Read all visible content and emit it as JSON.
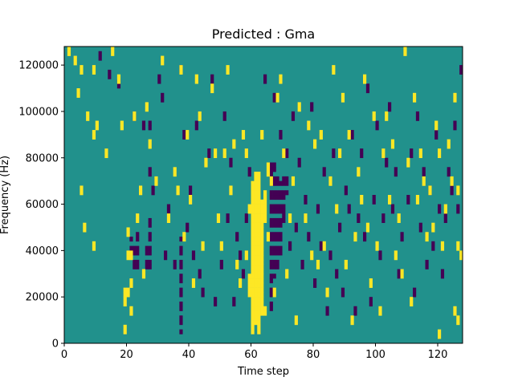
{
  "chart_data": {
    "type": "heatmap",
    "title": "Predicted : Gma",
    "xlabel": "Time step",
    "ylabel": "Frequency (Hz)",
    "xlim": [
      0,
      128
    ],
    "ylim": [
      0,
      128000
    ],
    "x_ticks": [
      0,
      20,
      40,
      60,
      80,
      100,
      120
    ],
    "y_ticks": [
      0,
      20000,
      40000,
      60000,
      80000,
      100000,
      120000
    ],
    "x_tick_labels": [
      "0",
      "20",
      "40",
      "60",
      "80",
      "100",
      "120"
    ],
    "y_tick_labels": [
      "0",
      "20000",
      "40000",
      "60000",
      "80000",
      "100000",
      "120000"
    ],
    "n_freq_bins": 64,
    "freq_bin_hz": 2000,
    "grid": false,
    "legend": "none",
    "colors": {
      "background": "#21918c",
      "high": "#fde725",
      "low": "#440154"
    },
    "yellow_columns": [
      {
        "t": 60,
        "f": [
          2,
          34
        ]
      },
      {
        "t": 61,
        "f": [
          4,
          36
        ]
      },
      {
        "t": 62,
        "f": [
          2,
          36
        ]
      },
      {
        "t": 63,
        "f": [
          6,
          30
        ]
      },
      {
        "t": 64,
        "f": [
          26,
          32
        ]
      },
      {
        "t": 59,
        "f": [
          10,
          14
        ]
      },
      {
        "t": 65,
        "f": [
          36,
          38
        ]
      }
    ],
    "yellow_cells": [
      [
        1,
        62
      ],
      [
        3,
        60
      ],
      [
        4,
        53
      ],
      [
        5,
        58
      ],
      [
        9,
        58
      ],
      [
        9,
        44
      ],
      [
        13,
        40
      ],
      [
        15,
        62
      ],
      [
        17,
        56
      ],
      [
        18,
        46
      ],
      [
        19,
        2
      ],
      [
        7,
        48
      ],
      [
        6,
        24
      ],
      [
        9,
        20
      ],
      [
        10,
        46
      ],
      [
        5,
        32
      ],
      [
        20,
        18
      ],
      [
        20,
        23
      ],
      [
        21,
        18
      ],
      [
        21,
        12
      ],
      [
        21,
        6
      ],
      [
        22,
        48
      ],
      [
        19,
        8
      ],
      [
        19,
        10
      ],
      [
        20,
        10
      ],
      [
        23,
        26
      ],
      [
        24,
        32
      ],
      [
        25,
        14
      ],
      [
        26,
        50
      ],
      [
        27,
        42
      ],
      [
        29,
        34
      ],
      [
        31,
        60
      ],
      [
        33,
        26
      ],
      [
        35,
        36
      ],
      [
        36,
        32
      ],
      [
        37,
        58
      ],
      [
        38,
        22
      ],
      [
        39,
        44
      ],
      [
        40,
        30
      ],
      [
        41,
        12
      ],
      [
        42,
        56
      ],
      [
        43,
        48
      ],
      [
        44,
        20
      ],
      [
        45,
        38
      ],
      [
        47,
        54
      ],
      [
        48,
        40
      ],
      [
        49,
        26
      ],
      [
        50,
        20
      ],
      [
        51,
        40
      ],
      [
        52,
        58
      ],
      [
        53,
        32
      ],
      [
        54,
        42
      ],
      [
        55,
        16
      ],
      [
        56,
        12
      ],
      [
        57,
        44
      ],
      [
        58,
        18
      ],
      [
        58,
        40
      ],
      [
        59,
        28
      ],
      [
        63,
        44
      ],
      [
        64,
        6
      ],
      [
        65,
        22
      ],
      [
        66,
        34
      ],
      [
        67,
        10
      ],
      [
        68,
        52
      ],
      [
        69,
        56
      ],
      [
        70,
        40
      ],
      [
        71,
        14
      ],
      [
        72,
        26
      ],
      [
        73,
        34
      ],
      [
        74,
        4
      ],
      [
        75,
        50
      ],
      [
        77,
        26
      ],
      [
        78,
        46
      ],
      [
        79,
        18
      ],
      [
        80,
        42
      ],
      [
        81,
        16
      ],
      [
        82,
        44
      ],
      [
        83,
        20
      ],
      [
        84,
        10
      ],
      [
        85,
        34
      ],
      [
        86,
        58
      ],
      [
        87,
        28
      ],
      [
        88,
        40
      ],
      [
        89,
        52
      ],
      [
        90,
        16
      ],
      [
        91,
        44
      ],
      [
        92,
        4
      ],
      [
        93,
        22
      ],
      [
        94,
        36
      ],
      [
        95,
        30
      ],
      [
        96,
        56
      ],
      [
        97,
        24
      ],
      [
        98,
        12
      ],
      [
        99,
        48
      ],
      [
        100,
        20
      ],
      [
        101,
        6
      ],
      [
        102,
        40
      ],
      [
        103,
        48
      ],
      [
        104,
        30
      ],
      [
        105,
        42
      ],
      [
        106,
        18
      ],
      [
        107,
        26
      ],
      [
        108,
        14
      ],
      [
        109,
        62
      ],
      [
        110,
        38
      ],
      [
        111,
        8
      ],
      [
        112,
        52
      ],
      [
        113,
        30
      ],
      [
        114,
        40
      ],
      [
        115,
        34
      ],
      [
        116,
        22
      ],
      [
        117,
        32
      ],
      [
        118,
        24
      ],
      [
        119,
        46
      ],
      [
        120,
        40
      ],
      [
        120,
        1
      ],
      [
        121,
        20
      ],
      [
        122,
        28
      ],
      [
        123,
        42
      ],
      [
        124,
        34
      ],
      [
        125,
        52
      ],
      [
        126,
        20
      ],
      [
        126,
        32
      ],
      [
        127,
        18
      ],
      [
        125,
        6
      ],
      [
        126,
        4
      ]
    ],
    "purple_cells": [
      [
        4,
        64
      ],
      [
        11,
        61
      ],
      [
        14,
        57
      ],
      [
        17,
        55
      ],
      [
        22,
        48
      ],
      [
        25,
        46
      ],
      [
        27,
        36
      ],
      [
        27,
        46
      ],
      [
        28,
        32
      ],
      [
        30,
        56
      ],
      [
        31,
        52
      ],
      [
        32,
        18
      ],
      [
        33,
        28
      ],
      [
        35,
        16
      ],
      [
        37,
        58
      ],
      [
        38,
        44
      ],
      [
        39,
        24
      ],
      [
        40,
        32
      ],
      [
        41,
        18
      ],
      [
        42,
        46
      ],
      [
        43,
        14
      ],
      [
        44,
        10
      ],
      [
        46,
        40
      ],
      [
        47,
        56
      ],
      [
        48,
        8
      ],
      [
        50,
        16
      ],
      [
        51,
        48
      ],
      [
        52,
        26
      ],
      [
        53,
        38
      ],
      [
        54,
        8
      ],
      [
        55,
        22
      ],
      [
        56,
        18
      ],
      [
        57,
        14
      ],
      [
        58,
        26
      ],
      [
        59,
        36
      ],
      [
        64,
        56
      ],
      [
        66,
        36
      ],
      [
        67,
        52
      ],
      [
        68,
        34
      ],
      [
        69,
        44
      ],
      [
        70,
        26
      ],
      [
        71,
        40
      ],
      [
        72,
        20
      ],
      [
        73,
        48
      ],
      [
        74,
        24
      ],
      [
        75,
        38
      ],
      [
        76,
        16
      ],
      [
        77,
        30
      ],
      [
        78,
        22
      ],
      [
        79,
        50
      ],
      [
        80,
        12
      ],
      [
        81,
        28
      ],
      [
        82,
        20
      ],
      [
        83,
        36
      ],
      [
        84,
        6
      ],
      [
        85,
        18
      ],
      [
        86,
        40
      ],
      [
        87,
        14
      ],
      [
        88,
        24
      ],
      [
        89,
        10
      ],
      [
        90,
        32
      ],
      [
        91,
        28
      ],
      [
        92,
        44
      ],
      [
        93,
        6
      ],
      [
        94,
        26
      ],
      [
        95,
        40
      ],
      [
        96,
        22
      ],
      [
        97,
        54
      ],
      [
        98,
        8
      ],
      [
        99,
        30
      ],
      [
        100,
        46
      ],
      [
        101,
        18
      ],
      [
        102,
        26
      ],
      [
        103,
        38
      ],
      [
        104,
        50
      ],
      [
        105,
        28
      ],
      [
        106,
        36
      ],
      [
        107,
        14
      ],
      [
        108,
        22
      ],
      [
        109,
        64
      ],
      [
        110,
        30
      ],
      [
        111,
        40
      ],
      [
        112,
        10
      ],
      [
        113,
        48
      ],
      [
        114,
        24
      ],
      [
        115,
        36
      ],
      [
        116,
        16
      ],
      [
        117,
        32
      ],
      [
        118,
        20
      ],
      [
        119,
        44
      ],
      [
        120,
        28
      ],
      [
        121,
        14
      ],
      [
        122,
        26
      ],
      [
        123,
        36
      ],
      [
        124,
        32
      ],
      [
        125,
        46
      ],
      [
        126,
        28
      ],
      [
        127,
        58
      ]
    ],
    "purple_clusters": [
      {
        "t": 66,
        "f": [
          6,
          38
        ]
      },
      {
        "t": 67,
        "f": [
          14,
          38
        ]
      },
      {
        "t": 68,
        "f": [
          16,
          32
        ]
      },
      {
        "t": 69,
        "f": [
          18,
          34
        ]
      },
      {
        "t": 70,
        "f": [
          28,
          36
        ]
      },
      {
        "t": 71,
        "f": [
          32,
          36
        ]
      },
      {
        "t": 37,
        "f": [
          2,
          22
        ]
      },
      {
        "t": 26,
        "f": [
          16,
          20
        ]
      },
      {
        "t": 27,
        "f": [
          16,
          26
        ]
      },
      {
        "t": 21,
        "f": [
          18,
          22
        ]
      },
      {
        "t": 22,
        "f": [
          16,
          20
        ]
      },
      {
        "t": 23,
        "f": [
          16,
          24
        ]
      }
    ]
  }
}
